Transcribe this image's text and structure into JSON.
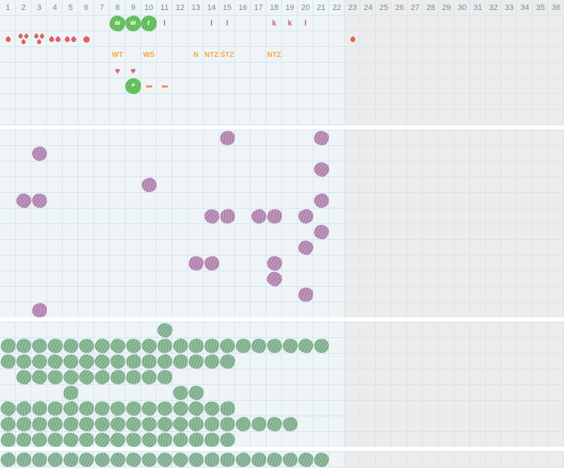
{
  "grid": {
    "columns": 36,
    "active_columns": 22,
    "cell_size": 22,
    "header_numbers": [
      "1",
      "2",
      "3",
      "4",
      "5",
      "6",
      "7",
      "8",
      "9",
      "10",
      "11",
      "12",
      "13",
      "14",
      "15",
      "16",
      "17",
      "18",
      "19",
      "20",
      "21",
      "22",
      "23",
      "24",
      "25",
      "26",
      "27",
      "28",
      "29",
      "30",
      "31",
      "32",
      "33",
      "34",
      "35",
      "36"
    ]
  },
  "colors": {
    "bg_active": "#eff4f7",
    "bg_inactive": "#ececec",
    "grid_line": "#d3e5ef",
    "header_text": "#7b8791",
    "red": "#e15f5f",
    "bright_green": "#5eba58",
    "bright_green_light": "#7ecf74",
    "orange_label": "#f6a83d",
    "orange_dash": "#ef8e60",
    "pink_heart": "#d4638f",
    "pink_letter": "#b36b9e",
    "purple": "#b283ae",
    "purple_light": "#c9a5c6",
    "sage": "#7fae8e",
    "sage_light": "#a2c5ac"
  },
  "icons": {
    "heart": "♥"
  },
  "sections": [
    {
      "id": "s1",
      "rows": 8,
      "has_header_row": true,
      "markers": [
        {
          "type": "green-letter-blob",
          "row": 1,
          "cols": [
            8
          ],
          "label": "w"
        },
        {
          "type": "green-letter-blob",
          "row": 1,
          "cols": [
            9
          ],
          "label": "w"
        },
        {
          "type": "green-letter-blob",
          "row": 1,
          "cols": [
            10
          ],
          "label": "r"
        },
        {
          "type": "pink-letter",
          "row": 1,
          "cols": [
            11
          ],
          "label": "l"
        },
        {
          "type": "pink-letter",
          "row": 1,
          "cols": [
            14
          ],
          "label": "l"
        },
        {
          "type": "pink-letter",
          "row": 1,
          "cols": [
            15
          ],
          "label": "l"
        },
        {
          "type": "pink-letter",
          "row": 1,
          "cols": [
            18
          ],
          "label": "k"
        },
        {
          "type": "pink-letter",
          "row": 1,
          "cols": [
            19
          ],
          "label": "k"
        },
        {
          "type": "pink-letter",
          "row": 1,
          "cols": [
            20
          ],
          "label": "l"
        },
        {
          "type": "drops1",
          "row": 2,
          "cols": [
            1,
            23
          ]
        },
        {
          "type": "drops3",
          "row": 2,
          "cols": [
            2,
            3
          ]
        },
        {
          "type": "drops2",
          "row": 2,
          "cols": [
            4,
            5
          ]
        },
        {
          "type": "dot",
          "row": 2,
          "cols": [
            6
          ]
        },
        {
          "type": "orange-label",
          "row": 3,
          "cols": [
            8
          ],
          "label": "WT"
        },
        {
          "type": "orange-label",
          "row": 3,
          "cols": [
            10
          ],
          "label": "WŚ"
        },
        {
          "type": "orange-label",
          "row": 3,
          "cols": [
            13
          ],
          "label": "N"
        },
        {
          "type": "orange-label",
          "row": 3,
          "cols": [
            14
          ],
          "label": "NTZ"
        },
        {
          "type": "orange-label",
          "row": 3,
          "cols": [
            15
          ],
          "label": "ŚTZ"
        },
        {
          "type": "orange-label",
          "row": 3,
          "cols": [
            18
          ],
          "label": "NTZ"
        },
        {
          "type": "heart",
          "row": 4,
          "cols": [
            8,
            9
          ]
        },
        {
          "type": "green-letter-blob",
          "row": 5,
          "cols": [
            9
          ],
          "label": "+"
        },
        {
          "type": "dash",
          "row": 5,
          "cols": [
            10,
            11
          ]
        }
      ]
    },
    {
      "id": "s2",
      "rows": 12,
      "has_header_row": false,
      "markers": [
        {
          "type": "purple-blob",
          "row": 0,
          "cols": [
            15,
            21
          ]
        },
        {
          "type": "purple-blob",
          "row": 1,
          "cols": [
            3
          ]
        },
        {
          "type": "purple-blob",
          "row": 2,
          "cols": [
            21
          ]
        },
        {
          "type": "purple-blob",
          "row": 3,
          "cols": [
            10
          ]
        },
        {
          "type": "purple-blob",
          "row": 4,
          "cols": [
            2,
            3,
            21
          ]
        },
        {
          "type": "purple-blob",
          "row": 5,
          "cols": [
            14,
            15,
            17,
            18,
            20
          ]
        },
        {
          "type": "purple-blob",
          "row": 6,
          "cols": [
            21
          ]
        },
        {
          "type": "purple-blob",
          "row": 7,
          "cols": [
            20
          ]
        },
        {
          "type": "purple-blob",
          "row": 8,
          "cols": [
            13,
            14,
            18
          ]
        },
        {
          "type": "purple-blob",
          "row": 9,
          "cols": [
            18
          ]
        },
        {
          "type": "purple-blob",
          "row": 10,
          "cols": [
            20
          ]
        },
        {
          "type": "purple-blob",
          "row": 11,
          "cols": [
            3
          ]
        }
      ]
    },
    {
      "id": "s3",
      "rows": 8,
      "has_header_row": false,
      "markers": [
        {
          "type": "sage-blob",
          "row": 0,
          "cols": [
            11
          ]
        },
        {
          "type": "sage-blob",
          "row": 1,
          "cols": [
            1,
            2,
            3,
            4,
            5,
            6,
            7,
            8,
            9,
            10,
            11,
            12,
            13,
            14,
            15,
            16,
            17,
            18,
            19,
            20,
            21
          ]
        },
        {
          "type": "sage-blob",
          "row": 2,
          "cols": [
            1,
            2,
            3,
            4,
            5,
            6,
            7,
            8,
            9,
            10,
            11,
            12,
            13,
            14,
            15
          ]
        },
        {
          "type": "sage-blob",
          "row": 3,
          "cols": [
            2,
            3,
            4,
            5,
            6,
            7,
            8,
            9,
            10,
            11
          ]
        },
        {
          "type": "sage-blob",
          "row": 4,
          "cols": [
            5,
            12,
            13
          ]
        },
        {
          "type": "sage-blob",
          "row": 5,
          "cols": [
            1,
            2,
            3,
            4,
            5,
            6,
            7,
            8,
            9,
            10,
            11,
            12,
            13,
            14,
            15
          ]
        },
        {
          "type": "sage-blob",
          "row": 6,
          "cols": [
            1,
            2,
            3,
            4,
            5,
            6,
            7,
            8,
            9,
            10,
            11,
            12,
            13,
            14,
            15,
            16,
            17,
            18,
            19
          ]
        },
        {
          "type": "sage-blob",
          "row": 7,
          "cols": [
            1,
            2,
            3,
            4,
            5,
            6,
            7,
            8,
            9,
            10,
            11,
            12,
            13,
            14,
            15
          ]
        }
      ]
    },
    {
      "id": "s4",
      "rows": 1,
      "has_header_row": false,
      "markers": [
        {
          "type": "sage-blob",
          "row": 0,
          "cols": [
            1,
            2,
            3,
            4,
            5,
            6,
            7,
            8,
            9,
            10,
            11,
            12,
            13,
            14,
            15,
            16,
            17,
            18,
            19,
            20,
            21
          ]
        }
      ]
    }
  ]
}
